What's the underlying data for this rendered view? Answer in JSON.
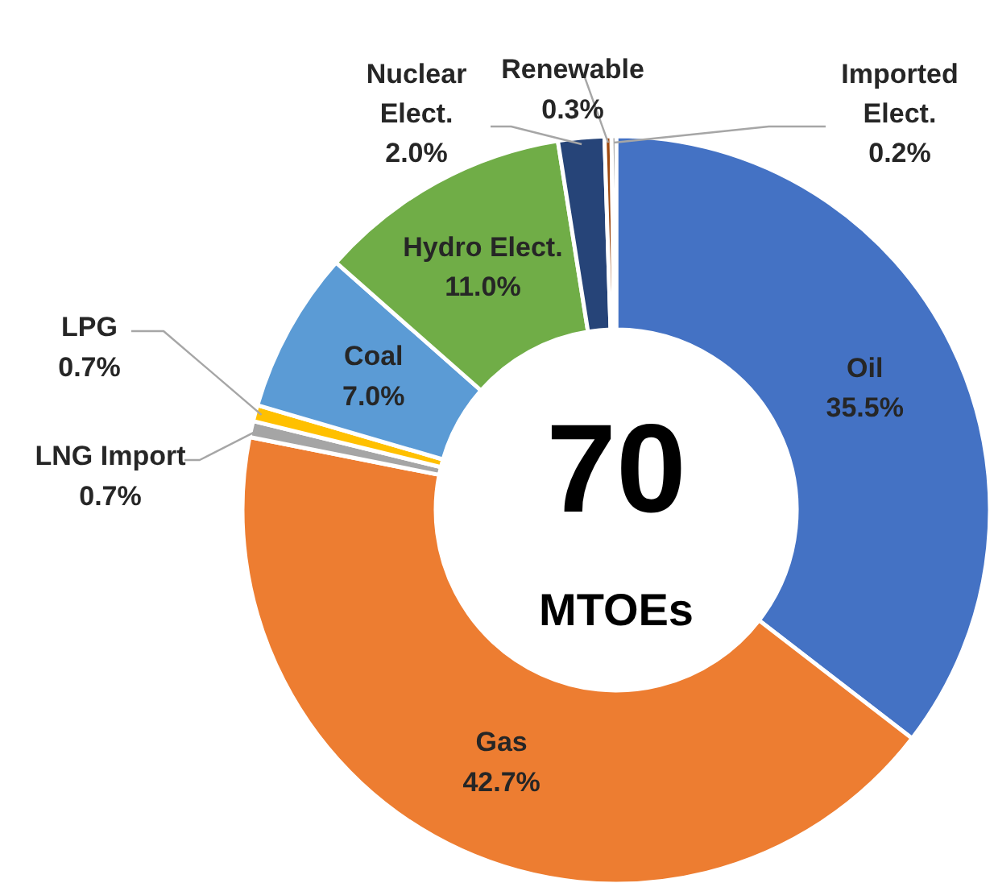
{
  "chart_data": {
    "type": "donut",
    "categories": [
      "Oil",
      "Gas",
      "LNG Import",
      "LPG",
      "Coal",
      "Hydro Elect.",
      "Nuclear\nElect.",
      "Renewable",
      "Imported\nElect."
    ],
    "values": [
      35.5,
      42.7,
      0.7,
      0.7,
      7.0,
      11.0,
      2.0,
      0.3,
      0.2
    ],
    "colors": [
      "#4472c4",
      "#ed7d31",
      "#a5a5a5",
      "#ffc000",
      "#5b9bd5",
      "#70ad47",
      "#264478",
      "#9e480e",
      "#636363"
    ],
    "value_labels": [
      "35.5%",
      "42.7%",
      "0.7%",
      "0.7%",
      "7.0%",
      "11.0%",
      "2.0%",
      "0.3%",
      "0.2%"
    ],
    "annotations": [
      "70",
      "MTOEs"
    ]
  }
}
